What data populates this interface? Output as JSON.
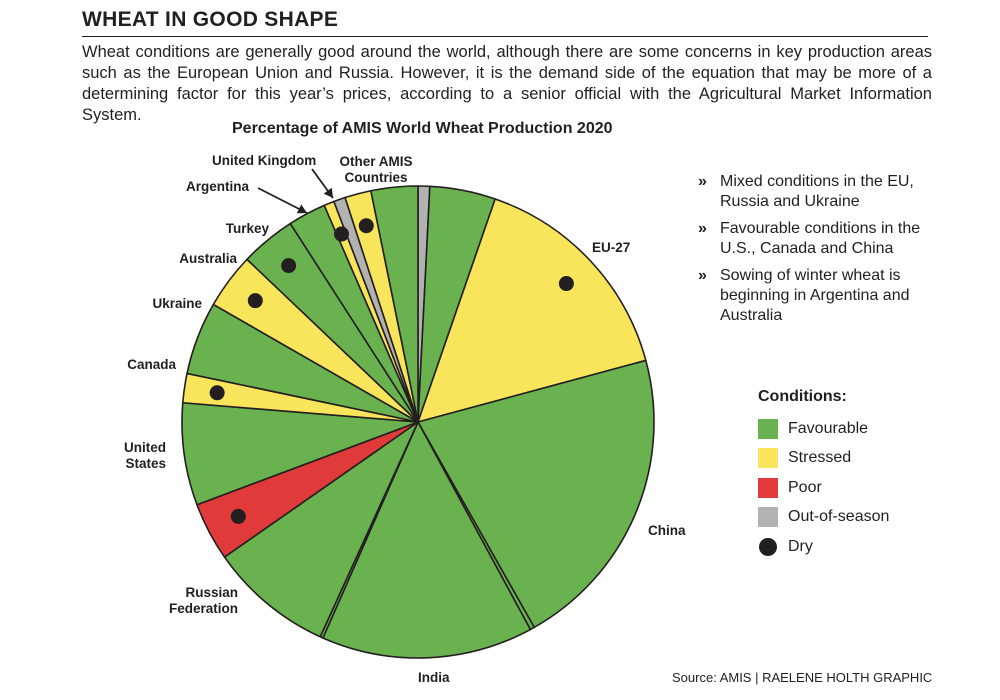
{
  "header": {
    "title": "WHEAT IN GOOD SHAPE",
    "intro": "Wheat conditions are generally good around the world, although there are some concerns in key production areas such as the European Union and Russia. However, it is the demand side of the equation that may be more of a determining factor for this year’s prices, according to a senior official with the Agricultural Market Information System."
  },
  "colors": {
    "Favourable": "#6ab150",
    "Stressed": "#f9e55b",
    "Poor": "#e03a3a",
    "Out-of-season": "#b2b2b2",
    "Dry": "#231f20"
  },
  "chart_data": {
    "type": "pie",
    "title": "Percentage of AMIS World Wheat Production 2020",
    "unit": "%",
    "slices": [
      {
        "label": "",
        "value": 0.8,
        "condition": "Out-of-season",
        "dry": false
      },
      {
        "label": "EU-27",
        "value": 4.5,
        "condition": "Favourable",
        "dry": false
      },
      {
        "label": "EU-27",
        "value": 15.5,
        "condition": "Stressed",
        "dry": true
      },
      {
        "label": "China",
        "value": 21.0,
        "condition": "Favourable",
        "dry": false
      },
      {
        "label": "China",
        "value": 0.3,
        "condition": "Favourable",
        "dry": false
      },
      {
        "label": "India",
        "value": 14.5,
        "condition": "Favourable",
        "dry": false
      },
      {
        "label": "India",
        "value": 0.2,
        "condition": "Favourable",
        "dry": false
      },
      {
        "label": "Russian Federation",
        "value": 8.5,
        "condition": "Favourable",
        "dry": false
      },
      {
        "label": "Russian Federation",
        "value": 4.0,
        "condition": "Poor",
        "dry": true
      },
      {
        "label": "United States",
        "value": 7.0,
        "condition": "Favourable",
        "dry": false
      },
      {
        "label": "United States",
        "value": 2.0,
        "condition": "Stressed",
        "dry": true
      },
      {
        "label": "Canada",
        "value": 5.0,
        "condition": "Favourable",
        "dry": false
      },
      {
        "label": "Ukraine",
        "value": 3.8,
        "condition": "Stressed",
        "dry": true
      },
      {
        "label": "Australia",
        "value": 3.8,
        "condition": "Favourable",
        "dry": true
      },
      {
        "label": "Turkey",
        "value": 2.6,
        "condition": "Favourable",
        "dry": false
      },
      {
        "label": "Argentina",
        "value": 0.7,
        "condition": "Stressed",
        "dry": true
      },
      {
        "label": "United Kingdom",
        "value": 0.8,
        "condition": "Out-of-season",
        "dry": false
      },
      {
        "label": "Other AMIS Countries",
        "value": 1.8,
        "condition": "Stressed",
        "dry": true
      },
      {
        "label": "Other AMIS Countries",
        "value": 3.2,
        "condition": "Favourable",
        "dry": false
      }
    ],
    "labels": [
      {
        "text": [
          "EU-27"
        ]
      },
      {
        "text": [
          "China"
        ]
      },
      {
        "text": [
          "India"
        ]
      },
      {
        "text": [
          "Russian",
          "Federation"
        ]
      },
      {
        "text": [
          "United",
          "States"
        ]
      },
      {
        "text": [
          "Canada"
        ]
      },
      {
        "text": [
          "Ukraine"
        ]
      },
      {
        "text": [
          "Australia"
        ]
      },
      {
        "text": [
          "Turkey"
        ]
      },
      {
        "text": [
          "Argentina"
        ]
      },
      {
        "text": [
          "United Kingdom"
        ]
      },
      {
        "text": [
          "Other AMIS",
          "Countries"
        ]
      }
    ]
  },
  "bullets": [
    "Mixed conditions in the EU, Russia and Ukraine",
    "Favourable conditions in the U.S., Canada and China",
    "Sowing of winter wheat is beginning in Argentina and Australia"
  ],
  "bullet_marker": "»",
  "legend": {
    "title": "Conditions:",
    "items": [
      "Favourable",
      "Stressed",
      "Poor",
      "Out-of-season",
      "Dry"
    ]
  },
  "source": "Source: AMIS  |  RAELENE HOLTH GRAPHIC"
}
